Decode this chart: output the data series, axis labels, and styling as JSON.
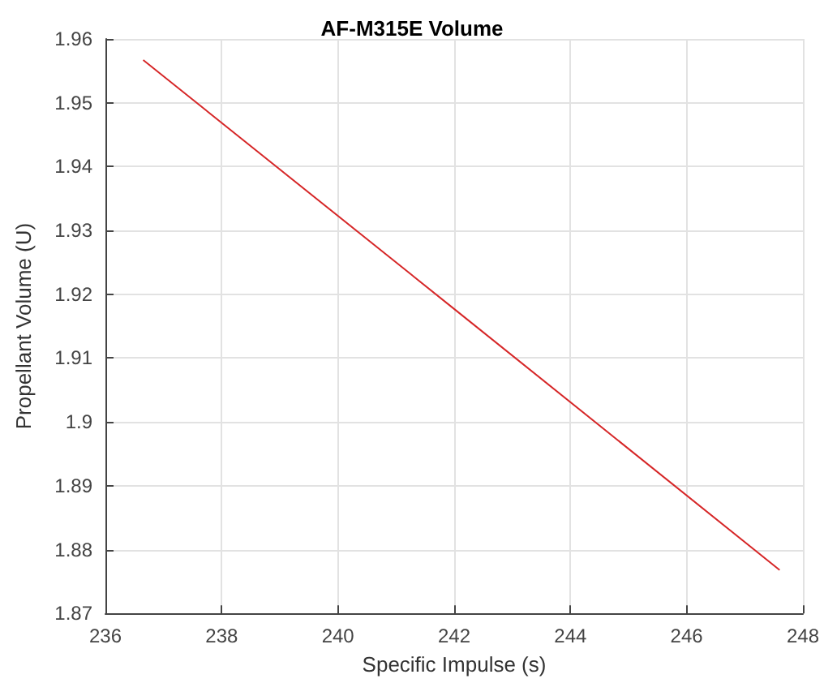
{
  "chart_data": {
    "type": "line",
    "title": "AF-M315E Volume",
    "xlabel": "Specific Impulse (s)",
    "ylabel": "Propellant Volume (U)",
    "x": [
      236.65,
      242,
      247.6
    ],
    "series": [
      {
        "color": "#d62728",
        "values": [
          1.9567,
          1.9177,
          1.8768
        ]
      }
    ],
    "xlim": [
      236,
      248
    ],
    "xticks": [
      236,
      238,
      240,
      242,
      244,
      246,
      248
    ],
    "ylim": [
      1.87,
      1.96
    ],
    "yticks": [
      1.87,
      1.88,
      1.89,
      1.9,
      1.91,
      1.92,
      1.93,
      1.94,
      1.95,
      1.96
    ],
    "grid": true,
    "marker": "none",
    "line_style": "solid"
  }
}
